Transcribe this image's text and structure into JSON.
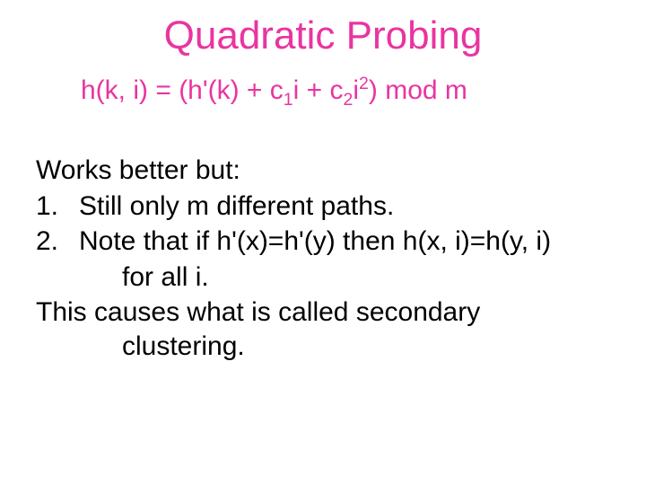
{
  "colors": {
    "title": "#e934a1",
    "formula": "#e934a1",
    "body": "#000000"
  },
  "title": "Quadratic Probing",
  "formula": {
    "lhs": "h(k, i) = (h'(k) + c",
    "sub1": "1",
    "mid1": "i + c",
    "sub2": "2",
    "mid2": "i",
    "sup": "2",
    "rhs": ") mod m"
  },
  "lead": "Works better but:",
  "items": [
    {
      "num": "1.",
      "text": "Still only m different paths."
    },
    {
      "num": "2.",
      "text": "Note that if h'(x)=h'(y) then h(x, i)=h(y, i)",
      "cont": "for all i."
    }
  ],
  "closing": {
    "line1": "This causes what is called secondary",
    "line2": "clustering."
  }
}
